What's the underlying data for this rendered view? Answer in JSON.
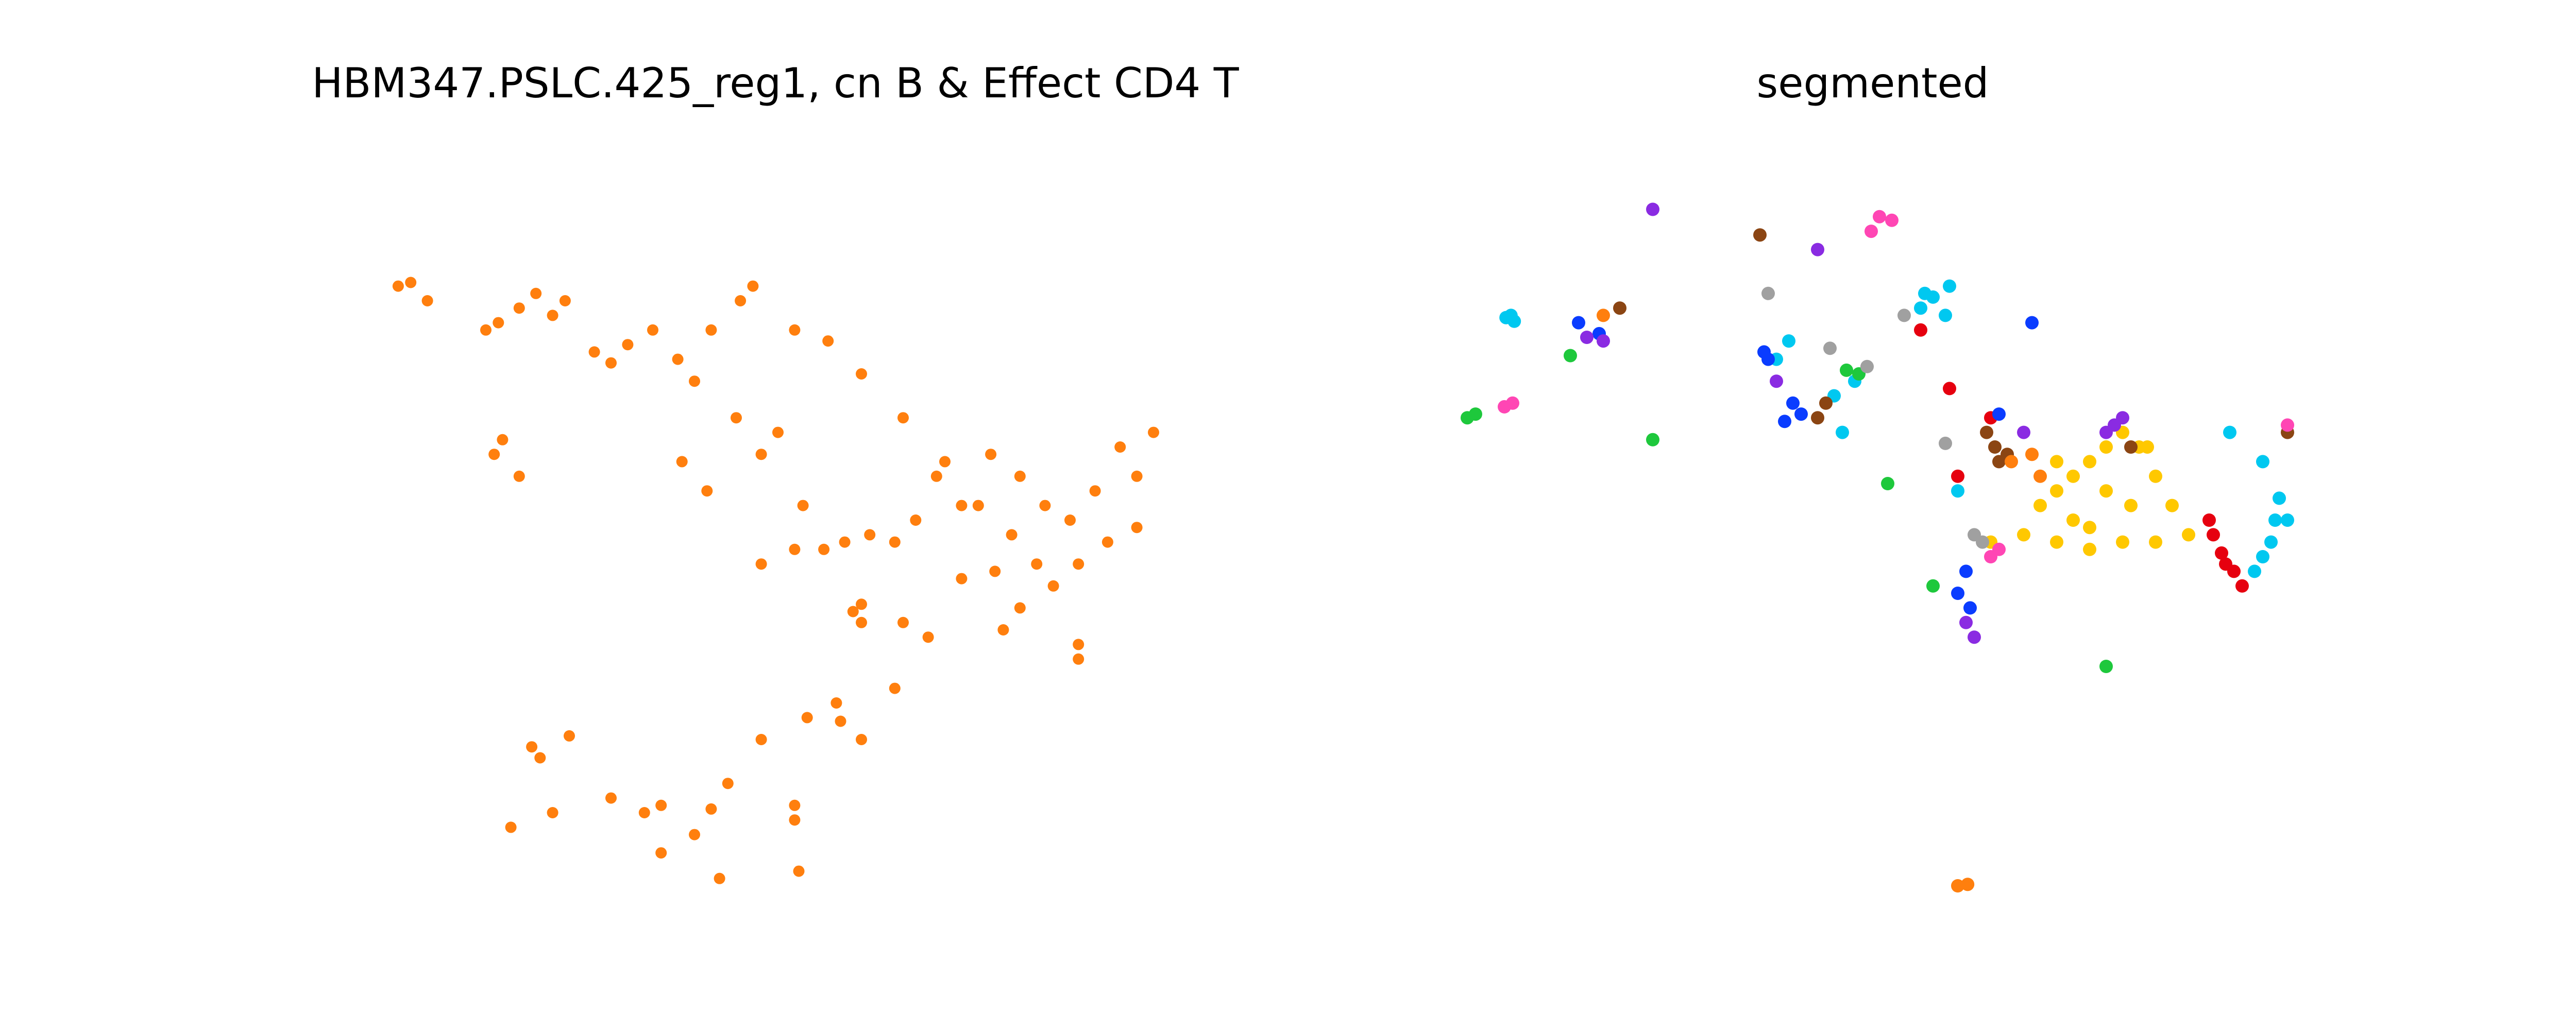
{
  "panels": [
    {
      "title": "HBM347.PSLC.425_reg1, cn B & Effect CD4 T"
    },
    {
      "title": "segmented"
    }
  ],
  "colors": {
    "highlight": "#ff7f0e",
    "clusters": [
      "#ffc800",
      "#e6000f",
      "#00c8f0",
      "#0a3cff",
      "#8a2be2",
      "#8b4513",
      "#ff7f0e",
      "#ff46b4",
      "#1ec83c",
      "#a0a0a0"
    ]
  },
  "chart_data": [
    {
      "type": "scatter",
      "title": "HBM347.PSLC.425_reg1, cn B & Effect CD4 T",
      "xlabel": "",
      "ylabel": "",
      "xlim": [
        0,
        1000
      ],
      "ylim": [
        0,
        1000
      ],
      "axes_visible": false,
      "grid": false,
      "points": [
        [
          45,
          820
        ],
        [
          60,
          825
        ],
        [
          80,
          800
        ],
        [
          150,
          760
        ],
        [
          165,
          770
        ],
        [
          190,
          790
        ],
        [
          210,
          810
        ],
        [
          230,
          780
        ],
        [
          245,
          800
        ],
        [
          280,
          730
        ],
        [
          300,
          715
        ],
        [
          320,
          740
        ],
        [
          350,
          760
        ],
        [
          380,
          720
        ],
        [
          400,
          690
        ],
        [
          420,
          760
        ],
        [
          455,
          800
        ],
        [
          470,
          820
        ],
        [
          520,
          760
        ],
        [
          560,
          745
        ],
        [
          600,
          700
        ],
        [
          650,
          640
        ],
        [
          700,
          580
        ],
        [
          740,
          520
        ],
        [
          780,
          480
        ],
        [
          810,
          440
        ],
        [
          830,
          410
        ],
        [
          860,
          440
        ],
        [
          895,
          470
        ],
        [
          930,
          490
        ],
        [
          160,
          590
        ],
        [
          170,
          610
        ],
        [
          190,
          560
        ],
        [
          385,
          580
        ],
        [
          415,
          540
        ],
        [
          450,
          640
        ],
        [
          480,
          590
        ],
        [
          500,
          620
        ],
        [
          530,
          520
        ],
        [
          555,
          460
        ],
        [
          580,
          470
        ],
        [
          610,
          480
        ],
        [
          640,
          470
        ],
        [
          665,
          500
        ],
        [
          690,
          560
        ],
        [
          720,
          520
        ],
        [
          755,
          590
        ],
        [
          790,
          560
        ],
        [
          820,
          520
        ],
        [
          850,
          500
        ],
        [
          880,
          540
        ],
        [
          910,
          600
        ],
        [
          930,
          560
        ],
        [
          950,
          620
        ],
        [
          720,
          420
        ],
        [
          760,
          430
        ],
        [
          790,
          380
        ],
        [
          650,
          360
        ],
        [
          680,
          340
        ],
        [
          770,
          350
        ],
        [
          600,
          360
        ],
        [
          480,
          440
        ],
        [
          520,
          460
        ],
        [
          860,
          330
        ],
        [
          520,
          110
        ],
        [
          520,
          90
        ],
        [
          400,
          70
        ],
        [
          360,
          45
        ],
        [
          525,
          20
        ],
        [
          430,
          10
        ],
        [
          180,
          80
        ],
        [
          230,
          100
        ],
        [
          300,
          120
        ],
        [
          340,
          100
        ],
        [
          360,
          110
        ],
        [
          420,
          105
        ],
        [
          205,
          190
        ],
        [
          215,
          175
        ],
        [
          250,
          205
        ],
        [
          440,
          140
        ],
        [
          480,
          200
        ],
        [
          535,
          230
        ],
        [
          570,
          250
        ],
        [
          600,
          200
        ],
        [
          575,
          225
        ],
        [
          640,
          270
        ],
        [
          590,
          375
        ],
        [
          600,
          385
        ],
        [
          860,
          310
        ]
      ]
    },
    {
      "type": "scatter",
      "title": "segmented",
      "xlabel": "",
      "ylabel": "",
      "xlim": [
        0,
        1000
      ],
      "ylim": [
        0,
        1000
      ],
      "axes_visible": false,
      "grid": false,
      "segments": [
        {
          "cluster": 0,
          "points": [
            [
              700,
              520
            ],
            [
              720,
              540
            ],
            [
              740,
              560
            ],
            [
              760,
              580
            ],
            [
              780,
              600
            ],
            [
              800,
              620
            ],
            [
              820,
              600
            ],
            [
              840,
              560
            ],
            [
              860,
              520
            ],
            [
              880,
              480
            ],
            [
              840,
              470
            ],
            [
              800,
              470
            ],
            [
              760,
              490
            ],
            [
              720,
              470
            ],
            [
              680,
              480
            ],
            [
              640,
              470
            ],
            [
              720,
              580
            ],
            [
              780,
              540
            ],
            [
              830,
              600
            ],
            [
              760,
              460
            ],
            [
              740,
              500
            ],
            [
              810,
              520
            ]
          ]
        },
        {
          "cluster": 1,
          "points": [
            [
              910,
              480
            ],
            [
              920,
              455
            ],
            [
              935,
              430
            ],
            [
              945,
              410
            ],
            [
              905,
              500
            ],
            [
              925,
              440
            ],
            [
              555,
              760
            ],
            [
              590,
              680
            ],
            [
              640,
              640
            ],
            [
              600,
              560
            ]
          ]
        },
        {
          "cluster": 2,
          "points": [
            [
              52,
              777
            ],
            [
              62,
              772
            ],
            [
              58,
              780
            ],
            [
              555,
              790
            ],
            [
              570,
              805
            ],
            [
              585,
              780
            ],
            [
              590,
              820
            ],
            [
              560,
              810
            ],
            [
              960,
              430
            ],
            [
              970,
              450
            ],
            [
              980,
              470
            ],
            [
              985,
              500
            ],
            [
              990,
              530
            ],
            [
              930,
              620
            ],
            [
              970,
              580
            ],
            [
              1000,
              500
            ],
            [
              380,
              720
            ],
            [
              395,
              745
            ],
            [
              475,
              690
            ],
            [
              460,
              620
            ],
            [
              450,
              670
            ],
            [
              600,
              540
            ]
          ]
        },
        {
          "cluster": 3,
          "points": [
            [
              140,
              770
            ],
            [
              165,
              755
            ],
            [
              365,
              730
            ],
            [
              370,
              720
            ],
            [
              400,
              660
            ],
            [
              410,
              645
            ],
            [
              390,
              635
            ],
            [
              650,
              645
            ],
            [
              600,
              400
            ],
            [
              615,
              380
            ],
            [
              610,
              430
            ],
            [
              690,
              770
            ]
          ]
        },
        {
          "cluster": 4,
          "points": [
            [
              150,
              750
            ],
            [
              170,
              745
            ],
            [
              230,
              925
            ],
            [
              380,
              690
            ],
            [
              430,
              870
            ],
            [
              790,
              630
            ],
            [
              800,
              640
            ],
            [
              780,
              620
            ],
            [
              610,
              360
            ],
            [
              620,
              340
            ],
            [
              680,
              620
            ]
          ]
        },
        {
          "cluster": 5,
          "points": [
            [
              190,
              790
            ],
            [
              360,
              890
            ],
            [
              635,
              620
            ],
            [
              645,
              600
            ],
            [
              660,
              590
            ],
            [
              650,
              580
            ],
            [
              810,
              600
            ],
            [
              1000,
              620
            ],
            [
              440,
              660
            ],
            [
              430,
              640
            ]
          ]
        },
        {
          "cluster": 6,
          "points": [
            [
              170,
              780
            ],
            [
              690,
              590
            ],
            [
              700,
              560
            ],
            [
              665,
              580
            ],
            [
              600,
              0
            ],
            [
              612,
              2
            ]
          ]
        },
        {
          "cluster": 7,
          "points": [
            [
              50,
              655
            ],
            [
              60,
              660
            ],
            [
              505,
              915
            ],
            [
              520,
              910
            ],
            [
              495,
              895
            ],
            [
              640,
              450
            ],
            [
              650,
              460
            ],
            [
              1000,
              630
            ]
          ]
        },
        {
          "cluster": 8,
          "points": [
            [
              5,
              640
            ],
            [
              15,
              645
            ],
            [
              130,
              725
            ],
            [
              230,
              610
            ],
            [
              465,
              705
            ],
            [
              480,
              700
            ],
            [
              515,
              550
            ],
            [
              570,
              410
            ],
            [
              780,
              300
            ]
          ]
        },
        {
          "cluster": 9,
          "points": [
            [
              370,
              810
            ],
            [
              445,
              735
            ],
            [
              490,
              710
            ],
            [
              535,
              780
            ],
            [
              585,
              605
            ],
            [
              620,
              480
            ],
            [
              630,
              470
            ]
          ]
        }
      ]
    }
  ]
}
